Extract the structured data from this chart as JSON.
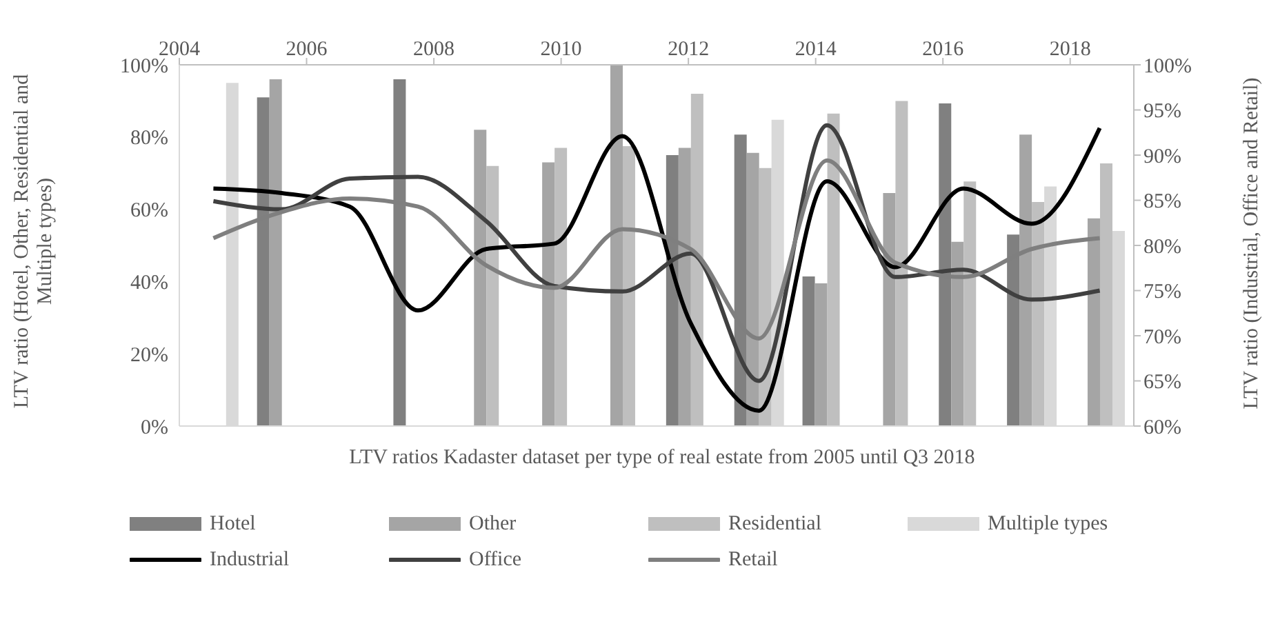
{
  "chart_data": {
    "type": "bar",
    "xlabel": "LTV ratios Kadaster dataset per type of real estate from 2005 until Q3 2018",
    "ylabel": "LTV ratio (Hotel, Other, Residential and Multiple types)",
    "y2label": "LTV ratio (Industrial, Office and Retail)",
    "categories": [
      null,
      null,
      null,
      null,
      null,
      null,
      null,
      null,
      null,
      null,
      null,
      null,
      null,
      null
    ],
    "series": [
      {
        "name": "Hotel",
        "color": "#808080",
        "values": [
          null,
          91,
          null,
          96,
          null,
          null,
          null,
          75,
          80.7,
          41.4,
          null,
          89.3,
          53,
          null
        ]
      },
      {
        "name": "Other",
        "color": "#a5a5a5",
        "values": [
          null,
          96,
          null,
          null,
          82,
          73,
          100,
          77,
          75.6,
          39.5,
          64.5,
          51,
          80.7,
          57.5
        ]
      },
      {
        "name": "Residential",
        "color": "#bfbfbf",
        "values": [
          null,
          null,
          null,
          null,
          72,
          77,
          77.5,
          92,
          71.4,
          86.5,
          90,
          67.7,
          62,
          72.7
        ]
      },
      {
        "name": "Multiple types",
        "color": "#d9d9d9",
        "values": [
          95,
          null,
          null,
          null,
          null,
          null,
          null,
          null,
          84.8,
          null,
          null,
          null,
          66.3,
          54
        ]
      },
      {
        "name": "Industrial",
        "type": "line",
        "axis": "y2",
        "color": "#000000",
        "values": [
          86.3,
          85.8,
          84.3,
          72.8,
          79.6,
          80.2,
          92.1,
          71.4,
          61.7,
          87.1,
          77.6,
          86.3,
          82.4,
          93
        ]
      },
      {
        "name": "Office",
        "type": "line",
        "axis": "y2",
        "color": "#404040",
        "values": [
          84.9,
          84,
          87.4,
          87.6,
          82.7,
          75.5,
          74.9,
          79.1,
          65,
          93.3,
          76.5,
          77.3,
          74,
          75
        ]
      },
      {
        "name": "Retail",
        "type": "line",
        "axis": "y2",
        "color": "#7f7f7f",
        "values": [
          80.8,
          83.7,
          85.2,
          84.3,
          77.8,
          75.3,
          81.8,
          79.6,
          69.7,
          89.4,
          78.1,
          76.5,
          79.6,
          80.8
        ]
      }
    ],
    "x2lim": [
      2004,
      2019
    ],
    "x2ticks": [
      2004,
      2006,
      2008,
      2010,
      2012,
      2014,
      2016,
      2018
    ],
    "ylim": [
      0,
      100
    ],
    "yticks": [
      {
        "value": 0,
        "label": "0%"
      },
      {
        "value": 20,
        "label": "20%"
      },
      {
        "value": 40,
        "label": "40%"
      },
      {
        "value": 60,
        "label": "60%"
      },
      {
        "value": 80,
        "label": "80%"
      },
      {
        "value": 100,
        "label": "100%"
      }
    ],
    "y2lim": [
      60,
      100
    ],
    "y2ticks": [
      {
        "value": 60,
        "label": "60%"
      },
      {
        "value": 65,
        "label": "65%"
      },
      {
        "value": 70,
        "label": "70%"
      },
      {
        "value": 75,
        "label": "75%"
      },
      {
        "value": 80,
        "label": "80%"
      },
      {
        "value": 85,
        "label": "85%"
      },
      {
        "value": 90,
        "label": "90%"
      },
      {
        "value": 95,
        "label": "95%"
      },
      {
        "value": 100,
        "label": "100%"
      }
    ],
    "legend": "bottom",
    "marker": "none",
    "line_style": "solid"
  }
}
